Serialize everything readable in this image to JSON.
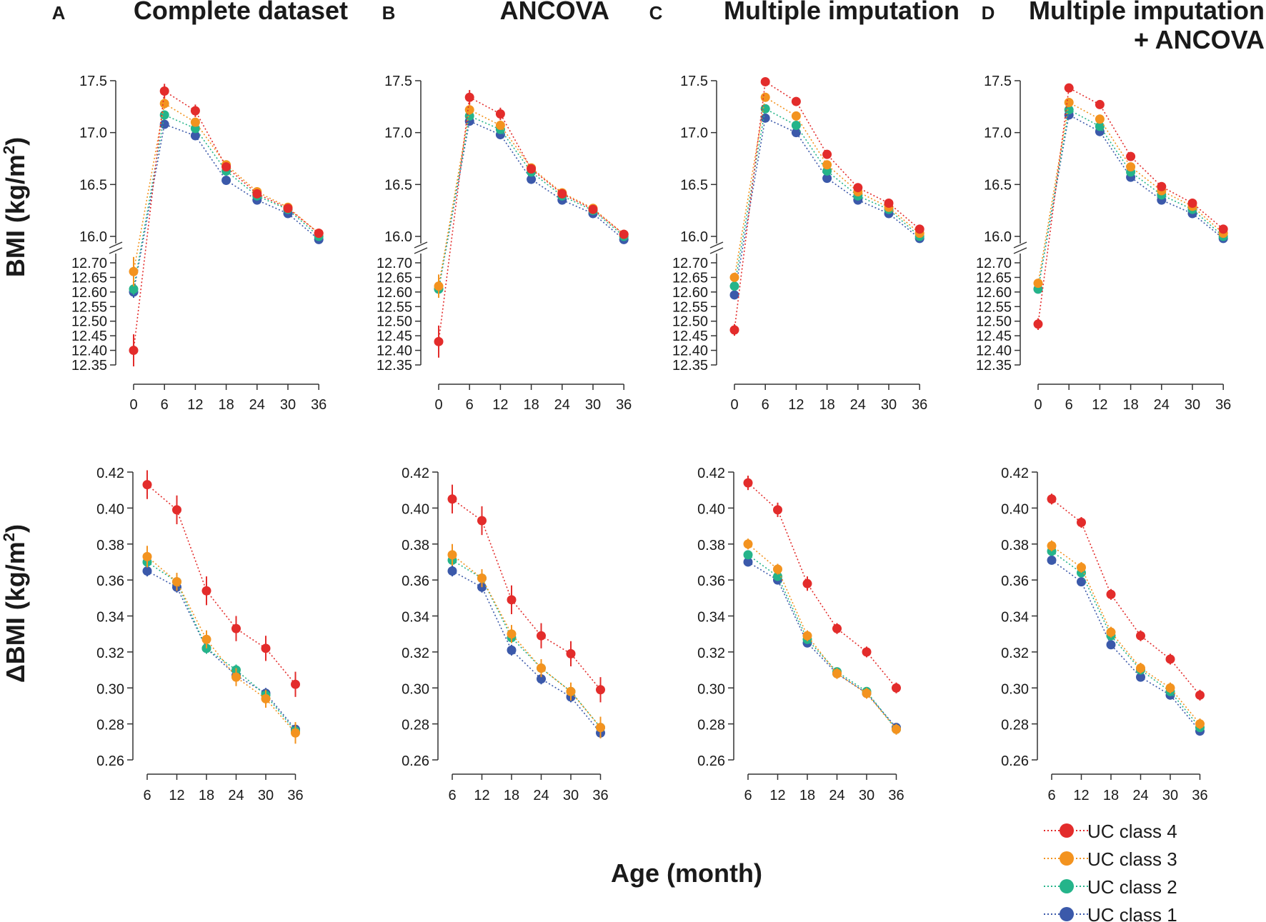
{
  "x_label": "Age (month)",
  "y_labels": {
    "bmi": {
      "prefix": "BMI (kg/m",
      "sup": "2",
      "suffix": ")"
    },
    "dbmi": {
      "prefix": "ΔBMI (kg/m",
      "sup": "2",
      "suffix": ")"
    }
  },
  "panels": [
    {
      "letter": "A",
      "title": [
        "Complete dataset"
      ]
    },
    {
      "letter": "B",
      "title": [
        "ANCOVA"
      ]
    },
    {
      "letter": "C",
      "title": [
        "Multiple imputation"
      ]
    },
    {
      "letter": "D",
      "title": [
        "Multiple imputation",
        "+ ANCOVA"
      ]
    }
  ],
  "legend": [
    {
      "label": "UC class 4",
      "color": "#e32c2b"
    },
    {
      "label": "UC class 3",
      "color": "#f3931f"
    },
    {
      "label": "UC class 2",
      "color": "#25b48a"
    },
    {
      "label": "UC class 1",
      "color": "#3b59aa"
    }
  ],
  "chart_data": [
    {
      "type": "line",
      "panel": "A",
      "title": "Complete dataset",
      "ylabel": "BMI (kg/m2)",
      "xlabel": "Age (month)",
      "x": [
        0,
        6,
        12,
        18,
        24,
        30,
        36
      ],
      "x_ticks": [
        "0",
        "6",
        "12",
        "18",
        "24",
        "30",
        "36"
      ],
      "y_axis_break": true,
      "lower_range": [
        12.35,
        12.7
      ],
      "lower_ticks": [
        "12.35",
        "12.40",
        "12.45",
        "12.50",
        "12.55",
        "12.60",
        "12.65",
        "12.70"
      ],
      "upper_range": [
        16.0,
        17.5
      ],
      "upper_ticks": [
        "16.0",
        "16.5",
        "17.0",
        "17.5"
      ],
      "series": [
        {
          "name": "UC class 4",
          "color": "#e32c2b",
          "values": [
            12.4,
            17.4,
            17.21,
            16.67,
            16.41,
            16.27,
            16.03
          ],
          "err": [
            0.055,
            0.07,
            0.06,
            0.04,
            0.035,
            0.04,
            0.03
          ]
        },
        {
          "name": "UC class 3",
          "color": "#f3931f",
          "values": [
            12.67,
            17.28,
            17.1,
            16.69,
            16.43,
            16.28,
            16.03
          ],
          "err": [
            0.05,
            0.05,
            0.04,
            0.03,
            0.03,
            0.03,
            0.03
          ]
        },
        {
          "name": "UC class 2",
          "color": "#25b48a",
          "values": [
            12.61,
            17.17,
            17.04,
            16.63,
            16.39,
            16.26,
            16.0
          ],
          "err": [
            0.02,
            0.03,
            0.03,
            0.02,
            0.02,
            0.02,
            0.02
          ]
        },
        {
          "name": "UC class 1",
          "color": "#3b59aa",
          "values": [
            12.6,
            17.08,
            16.97,
            16.54,
            16.35,
            16.22,
            15.97
          ],
          "err": [
            0.02,
            0.02,
            0.02,
            0.02,
            0.02,
            0.02,
            0.02
          ]
        }
      ]
    },
    {
      "type": "line",
      "panel": "B",
      "title": "ANCOVA",
      "ylabel": "BMI (kg/m2)",
      "xlabel": "Age (month)",
      "x": [
        0,
        6,
        12,
        18,
        24,
        30,
        36
      ],
      "x_ticks": [
        "0",
        "6",
        "12",
        "18",
        "24",
        "30",
        "36"
      ],
      "y_axis_break": true,
      "lower_range": [
        12.35,
        12.7
      ],
      "lower_ticks": [
        "12.35",
        "12.40",
        "12.45",
        "12.50",
        "12.55",
        "12.60",
        "12.65",
        "12.70"
      ],
      "upper_range": [
        16.0,
        17.5
      ],
      "upper_ticks": [
        "16.0",
        "16.5",
        "17.0",
        "17.5"
      ],
      "series": [
        {
          "name": "UC class 4",
          "color": "#e32c2b",
          "values": [
            12.43,
            17.34,
            17.18,
            16.65,
            16.41,
            16.26,
            16.02
          ],
          "err": [
            0.055,
            0.07,
            0.06,
            0.04,
            0.035,
            0.04,
            0.03
          ]
        },
        {
          "name": "UC class 3",
          "color": "#f3931f",
          "values": [
            12.62,
            17.22,
            17.07,
            16.66,
            16.42,
            16.27,
            16.02
          ],
          "err": [
            0.04,
            0.05,
            0.04,
            0.03,
            0.03,
            0.03,
            0.03
          ]
        },
        {
          "name": "UC class 2",
          "color": "#25b48a",
          "values": [
            12.61,
            17.16,
            17.03,
            16.62,
            16.39,
            16.25,
            16.0
          ],
          "err": [
            0.02,
            0.03,
            0.03,
            0.02,
            0.02,
            0.02,
            0.02
          ]
        },
        {
          "name": "UC class 1",
          "color": "#3b59aa",
          "values": [
            12.61,
            17.11,
            16.98,
            16.55,
            16.35,
            16.22,
            15.97
          ],
          "err": [
            0.02,
            0.02,
            0.02,
            0.02,
            0.02,
            0.02,
            0.02
          ]
        }
      ]
    },
    {
      "type": "line",
      "panel": "C",
      "title": "Multiple imputation",
      "ylabel": "BMI (kg/m2)",
      "xlabel": "Age (month)",
      "x": [
        0,
        6,
        12,
        18,
        24,
        30,
        36
      ],
      "x_ticks": [
        "0",
        "6",
        "12",
        "18",
        "24",
        "30",
        "36"
      ],
      "y_axis_break": true,
      "lower_range": [
        12.35,
        12.7
      ],
      "lower_ticks": [
        "12.35",
        "12.40",
        "12.45",
        "12.50",
        "12.55",
        "12.60",
        "12.65",
        "12.70"
      ],
      "upper_range": [
        16.0,
        17.5
      ],
      "upper_ticks": [
        "16.0",
        "16.5",
        "17.0",
        "17.5"
      ],
      "series": [
        {
          "name": "UC class 4",
          "color": "#e32c2b",
          "values": [
            12.47,
            17.49,
            17.3,
            16.79,
            16.47,
            16.32,
            16.07
          ],
          "err": [
            0.02,
            0.025,
            0.02,
            0.02,
            0.02,
            0.02,
            0.02
          ]
        },
        {
          "name": "UC class 3",
          "color": "#f3931f",
          "values": [
            12.65,
            17.34,
            17.16,
            16.69,
            16.43,
            16.28,
            16.03
          ],
          "err": [
            0.015,
            0.02,
            0.02,
            0.02,
            0.02,
            0.02,
            0.02
          ]
        },
        {
          "name": "UC class 2",
          "color": "#25b48a",
          "values": [
            12.62,
            17.23,
            17.07,
            16.63,
            16.39,
            16.26,
            16.0
          ],
          "err": [
            0.01,
            0.015,
            0.015,
            0.015,
            0.015,
            0.015,
            0.015
          ]
        },
        {
          "name": "UC class 1",
          "color": "#3b59aa",
          "values": [
            12.59,
            17.14,
            17.0,
            16.56,
            16.35,
            16.22,
            15.98
          ],
          "err": [
            0.01,
            0.015,
            0.015,
            0.015,
            0.015,
            0.015,
            0.015
          ]
        }
      ]
    },
    {
      "type": "line",
      "panel": "D",
      "title": "Multiple imputation + ANCOVA",
      "ylabel": "BMI (kg/m2)",
      "xlabel": "Age (month)",
      "x": [
        0,
        6,
        12,
        18,
        24,
        30,
        36
      ],
      "x_ticks": [
        "0",
        "6",
        "12",
        "18",
        "24",
        "30",
        "36"
      ],
      "y_axis_break": true,
      "lower_range": [
        12.35,
        12.7
      ],
      "lower_ticks": [
        "12.35",
        "12.40",
        "12.45",
        "12.50",
        "12.55",
        "12.60",
        "12.65",
        "12.70"
      ],
      "upper_range": [
        16.0,
        17.5
      ],
      "upper_ticks": [
        "16.0",
        "16.5",
        "17.0",
        "17.5"
      ],
      "series": [
        {
          "name": "UC class 4",
          "color": "#e32c2b",
          "values": [
            12.49,
            17.43,
            17.27,
            16.77,
            16.48,
            16.32,
            16.07
          ],
          "err": [
            0.02,
            0.02,
            0.02,
            0.02,
            0.02,
            0.02,
            0.02
          ]
        },
        {
          "name": "UC class 3",
          "color": "#f3931f",
          "values": [
            12.63,
            17.29,
            17.13,
            16.67,
            16.44,
            16.29,
            16.03
          ],
          "err": [
            0.015,
            0.02,
            0.02,
            0.02,
            0.02,
            0.02,
            0.02
          ]
        },
        {
          "name": "UC class 2",
          "color": "#25b48a",
          "values": [
            12.61,
            17.22,
            17.06,
            16.62,
            16.4,
            16.26,
            16.0
          ],
          "err": [
            0.01,
            0.015,
            0.015,
            0.015,
            0.015,
            0.015,
            0.015
          ]
        },
        {
          "name": "UC class 1",
          "color": "#3b59aa",
          "values": [
            12.61,
            17.17,
            17.01,
            16.57,
            16.35,
            16.22,
            15.98
          ],
          "err": [
            0.01,
            0.015,
            0.015,
            0.015,
            0.015,
            0.015,
            0.015
          ]
        }
      ]
    },
    {
      "type": "line",
      "panel": "A",
      "ylabel": "ΔBMI (kg/m2)",
      "xlabel": "Age (month)",
      "x": [
        6,
        12,
        18,
        24,
        30,
        36
      ],
      "x_ticks": [
        "6",
        "12",
        "18",
        "24",
        "30",
        "36"
      ],
      "ylim": [
        0.26,
        0.42
      ],
      "y_ticks": [
        "0.26",
        "0.28",
        "0.30",
        "0.32",
        "0.34",
        "0.36",
        "0.38",
        "0.40",
        "0.42"
      ],
      "series": [
        {
          "name": "UC class 4",
          "color": "#e32c2b",
          "values": [
            0.413,
            0.399,
            0.354,
            0.333,
            0.322,
            0.302
          ],
          "err": [
            0.008,
            0.008,
            0.008,
            0.007,
            0.007,
            0.007
          ]
        },
        {
          "name": "UC class 3",
          "color": "#f3931f",
          "values": [
            0.373,
            0.359,
            0.327,
            0.306,
            0.294,
            0.275
          ],
          "err": [
            0.006,
            0.005,
            0.005,
            0.005,
            0.005,
            0.006
          ]
        },
        {
          "name": "UC class 2",
          "color": "#25b48a",
          "values": [
            0.37,
            0.359,
            0.322,
            0.31,
            0.296,
            0.276
          ],
          "err": [
            0.003,
            0.003,
            0.003,
            0.003,
            0.003,
            0.003
          ]
        },
        {
          "name": "UC class 1",
          "color": "#3b59aa",
          "values": [
            0.365,
            0.356,
            0.322,
            0.307,
            0.297,
            0.277
          ],
          "err": [
            0.003,
            0.003,
            0.003,
            0.003,
            0.003,
            0.003
          ]
        }
      ]
    },
    {
      "type": "line",
      "panel": "B",
      "ylabel": "ΔBMI (kg/m2)",
      "xlabel": "Age (month)",
      "x": [
        6,
        12,
        18,
        24,
        30,
        36
      ],
      "x_ticks": [
        "6",
        "12",
        "18",
        "24",
        "30",
        "36"
      ],
      "ylim": [
        0.26,
        0.42
      ],
      "y_ticks": [
        "0.26",
        "0.28",
        "0.30",
        "0.32",
        "0.34",
        "0.36",
        "0.38",
        "0.40",
        "0.42"
      ],
      "series": [
        {
          "name": "UC class 4",
          "color": "#e32c2b",
          "values": [
            0.405,
            0.393,
            0.349,
            0.329,
            0.319,
            0.299
          ],
          "err": [
            0.008,
            0.008,
            0.008,
            0.007,
            0.007,
            0.007
          ]
        },
        {
          "name": "UC class 3",
          "color": "#f3931f",
          "values": [
            0.374,
            0.361,
            0.33,
            0.311,
            0.298,
            0.278
          ],
          "err": [
            0.006,
            0.005,
            0.005,
            0.005,
            0.005,
            0.006
          ]
        },
        {
          "name": "UC class 2",
          "color": "#25b48a",
          "values": [
            0.371,
            0.361,
            0.328,
            0.311,
            0.298,
            0.278
          ],
          "err": [
            0.003,
            0.003,
            0.003,
            0.003,
            0.003,
            0.003
          ]
        },
        {
          "name": "UC class 1",
          "color": "#3b59aa",
          "values": [
            0.365,
            0.356,
            0.321,
            0.305,
            0.295,
            0.275
          ],
          "err": [
            0.003,
            0.003,
            0.003,
            0.003,
            0.003,
            0.003
          ]
        }
      ]
    },
    {
      "type": "line",
      "panel": "C",
      "ylabel": "ΔBMI (kg/m2)",
      "xlabel": "Age (month)",
      "x": [
        6,
        12,
        18,
        24,
        30,
        36
      ],
      "x_ticks": [
        "6",
        "12",
        "18",
        "24",
        "30",
        "36"
      ],
      "ylim": [
        0.26,
        0.42
      ],
      "y_ticks": [
        "0.26",
        "0.28",
        "0.30",
        "0.32",
        "0.34",
        "0.36",
        "0.38",
        "0.40",
        "0.42"
      ],
      "series": [
        {
          "name": "UC class 4",
          "color": "#e32c2b",
          "values": [
            0.414,
            0.399,
            0.358,
            0.333,
            0.32,
            0.3
          ],
          "err": [
            0.004,
            0.004,
            0.004,
            0.003,
            0.003,
            0.003
          ]
        },
        {
          "name": "UC class 3",
          "color": "#f3931f",
          "values": [
            0.38,
            0.366,
            0.329,
            0.308,
            0.297,
            0.277
          ],
          "err": [
            0.003,
            0.003,
            0.003,
            0.003,
            0.003,
            0.003
          ]
        },
        {
          "name": "UC class 2",
          "color": "#25b48a",
          "values": [
            0.374,
            0.362,
            0.327,
            0.309,
            0.298,
            0.277
          ],
          "err": [
            0.002,
            0.002,
            0.002,
            0.002,
            0.002,
            0.002
          ]
        },
        {
          "name": "UC class 1",
          "color": "#3b59aa",
          "values": [
            0.37,
            0.36,
            0.325,
            0.308,
            0.297,
            0.278
          ],
          "err": [
            0.002,
            0.002,
            0.002,
            0.002,
            0.002,
            0.002
          ]
        }
      ]
    },
    {
      "type": "line",
      "panel": "D",
      "ylabel": "ΔBMI (kg/m2)",
      "xlabel": "Age (month)",
      "x": [
        6,
        12,
        18,
        24,
        30,
        36
      ],
      "x_ticks": [
        "6",
        "12",
        "18",
        "24",
        "30",
        "36"
      ],
      "ylim": [
        0.26,
        0.42
      ],
      "y_ticks": [
        "0.26",
        "0.28",
        "0.30",
        "0.32",
        "0.34",
        "0.36",
        "0.38",
        "0.40",
        "0.42"
      ],
      "series": [
        {
          "name": "UC class 4",
          "color": "#e32c2b",
          "values": [
            0.405,
            0.392,
            0.352,
            0.329,
            0.316,
            0.296
          ],
          "err": [
            0.003,
            0.003,
            0.003,
            0.003,
            0.003,
            0.003
          ]
        },
        {
          "name": "UC class 3",
          "color": "#f3931f",
          "values": [
            0.379,
            0.367,
            0.331,
            0.311,
            0.3,
            0.28
          ],
          "err": [
            0.003,
            0.003,
            0.003,
            0.003,
            0.003,
            0.003
          ]
        },
        {
          "name": "UC class 2",
          "color": "#25b48a",
          "values": [
            0.376,
            0.364,
            0.329,
            0.31,
            0.298,
            0.278
          ],
          "err": [
            0.002,
            0.002,
            0.002,
            0.002,
            0.002,
            0.002
          ]
        },
        {
          "name": "UC class 1",
          "color": "#3b59aa",
          "values": [
            0.371,
            0.359,
            0.324,
            0.306,
            0.296,
            0.276
          ],
          "err": [
            0.002,
            0.002,
            0.002,
            0.002,
            0.002,
            0.002
          ]
        }
      ]
    }
  ]
}
